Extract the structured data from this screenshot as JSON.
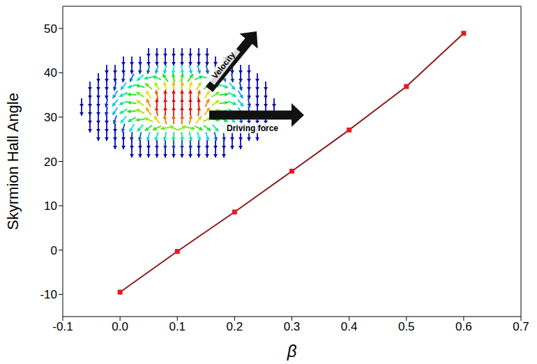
{
  "chart_data": {
    "type": "line",
    "x_label": "β",
    "y_label": "Skyrmion Hall Angle",
    "x": [
      0.0,
      0.1,
      0.2,
      0.3,
      0.4,
      0.5,
      0.6
    ],
    "values": [
      -9.5,
      -0.3,
      8.6,
      17.8,
      27.1,
      36.9,
      48.9
    ],
    "color": "#8b1a1a",
    "marker": "square",
    "xlim": [
      -0.1,
      0.7
    ],
    "xticks": [
      -0.1,
      {
        "value": 0,
        "label": "0.0"
      },
      0.1,
      0.2,
      0.3,
      0.4,
      0.5,
      0.6,
      0.7
    ],
    "ylim": [
      -15,
      55
    ],
    "yticks": [
      -10,
      0,
      10,
      20,
      30,
      40,
      50
    ],
    "grid": false,
    "annotations": [
      "Velocity",
      "Driving force"
    ]
  }
}
